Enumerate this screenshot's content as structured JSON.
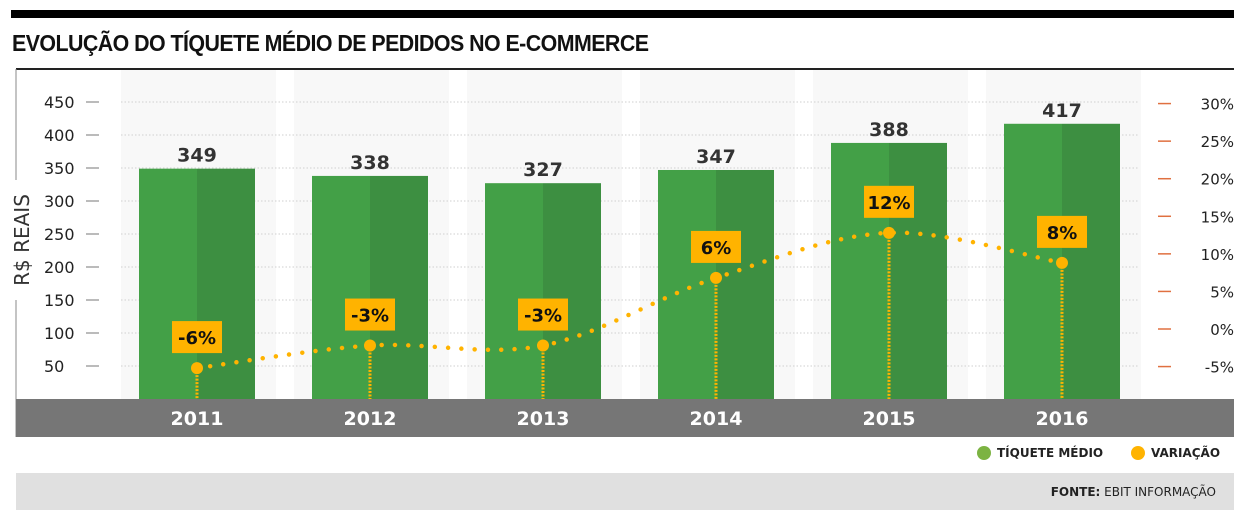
{
  "title": "EVOLUÇÃO DO TÍQUETE MÉDIO DE PEDIDOS NO E-COMMERCE",
  "chart_data": {
    "type": "bar+line",
    "categories": [
      "2011",
      "2012",
      "2013",
      "2014",
      "2015",
      "2016"
    ],
    "series": [
      {
        "name": "TÍQUETE MÉDIO",
        "type": "bar",
        "axis": "left",
        "values": [
          349,
          338,
          327,
          347,
          388,
          417
        ],
        "color": "#43a047"
      },
      {
        "name": "VARIAÇÃO",
        "type": "line",
        "axis": "right",
        "values": [
          -6,
          -3,
          -3,
          6,
          12,
          8
        ],
        "labels": [
          "-6%",
          "-3%",
          "-3%",
          "6%",
          "12%",
          "8%"
        ],
        "color": "#ffb300"
      }
    ],
    "ylabel": "R$ REAIS",
    "yticks_left": [
      "450",
      "400",
      "350",
      "300",
      "250",
      "200",
      "150",
      "100",
      "50"
    ],
    "ylim_left": [
      0,
      450
    ],
    "yticks_right": [
      "30%",
      "25%",
      "20%",
      "15%",
      "10%",
      "5%",
      "0%",
      "-5%"
    ],
    "ylim_right": [
      -5,
      30
    ],
    "grid": true,
    "legend": "bottom-right"
  },
  "legend": [
    {
      "label": "TÍQUETE MÉDIO",
      "color": "#7cb342"
    },
    {
      "label": "VARIAÇÃO",
      "color": "#ffb300"
    }
  ],
  "source": {
    "prefix": "FONTE:",
    "text": " EBIT INFORMAÇÃO"
  }
}
